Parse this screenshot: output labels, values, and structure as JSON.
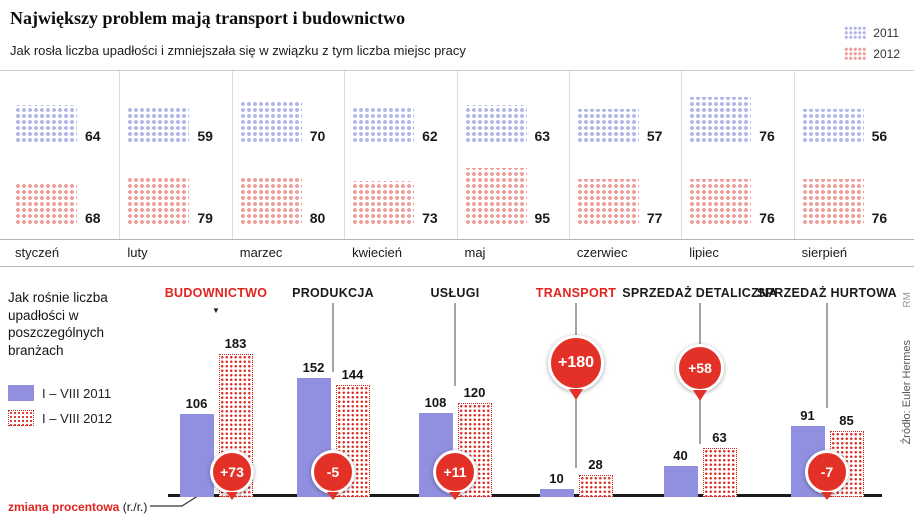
{
  "title": "Największy problem mają transport i budownictwo",
  "footnote": {
    "bold": "zmiana procentowa",
    "rest": " (r./r.)"
  },
  "source": "Źródło: Euler Hermes",
  "credit": "RM",
  "colors": {
    "c2011": "#918fe0",
    "c2011_dots": "#b5b9e8",
    "c2012_dots": "#f0a19e",
    "accent_red": "#e33127",
    "baseline": "#1a1a1a"
  },
  "chart_data": [
    {
      "type": "heatmap",
      "subtype": "dot-matrix-pictogram",
      "title": "Jak rosła liczba upadłości i zmniejszała się w związku z tym liczba miejsc pracy",
      "categories": [
        "styczeń",
        "luty",
        "marzec",
        "kwiecień",
        "maj",
        "czerwiec",
        "lipiec",
        "sierpień"
      ],
      "series": [
        {
          "name": "2011",
          "values": [
            64,
            59,
            70,
            62,
            63,
            57,
            76,
            56
          ]
        },
        {
          "name": "2012",
          "values": [
            68,
            79,
            80,
            73,
            95,
            77,
            76,
            76
          ]
        }
      ],
      "legend_position": "top-right"
    },
    {
      "type": "bar",
      "title": "Jak rośnie liczba upadłości w poszczególnych branżach",
      "categories": [
        "BUDOWNICTWO",
        "PRODUKCJA",
        "USŁUGI",
        "TRANSPORT",
        "SPRZEDAŻ DETALICZNA",
        "SPRZEDAŻ HURTOWA"
      ],
      "highlighted_categories": [
        "BUDOWNICTWO",
        "TRANSPORT"
      ],
      "series": [
        {
          "name": "I – VIII 2011",
          "values": [
            106,
            152,
            108,
            10,
            40,
            91
          ]
        },
        {
          "name": "I – VIII 2012",
          "values": [
            183,
            144,
            120,
            28,
            63,
            85
          ]
        }
      ],
      "changes": [
        "+73",
        "-5",
        "+11",
        "+180",
        "+58",
        "-7"
      ],
      "ylim": [
        0,
        200
      ],
      "legend_position": "left",
      "grid": false
    }
  ]
}
